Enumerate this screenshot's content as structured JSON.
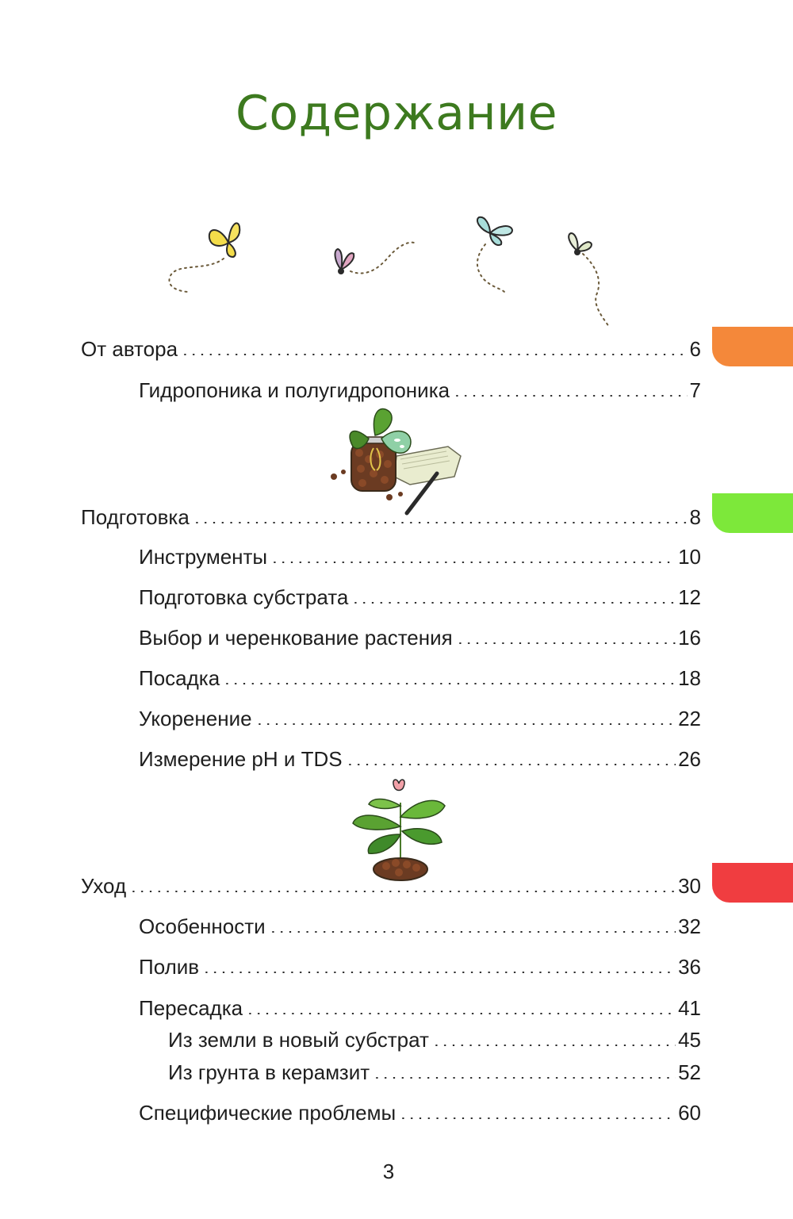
{
  "page_title": "Содержание",
  "toc": [
    {
      "label": "От автора",
      "page": "6"
    },
    {
      "label": "Гидропоника и полугидропоника",
      "page": "7"
    },
    {
      "label": "Подготовка",
      "page": "8"
    },
    {
      "label": "Инструменты",
      "page": "10"
    },
    {
      "label": "Подготовка субстрата",
      "page": "12"
    },
    {
      "label": "Выбор и черенкование растения",
      "page": "16"
    },
    {
      "label": "Посадка",
      "page": "18"
    },
    {
      "label": "Укоренение",
      "page": "22"
    },
    {
      "label": "Измерение pH и TDS",
      "page": "26"
    },
    {
      "label": "Уход",
      "page": "30"
    },
    {
      "label": "Особенности",
      "page": "32"
    },
    {
      "label": "Полив",
      "page": "36"
    },
    {
      "label": "Пересадка",
      "page": "41"
    },
    {
      "label": "Из земли в новый субстрат",
      "page": "45"
    },
    {
      "label": "Из грунта в керамзит",
      "page": "52"
    },
    {
      "label": "Специфические проблемы",
      "page": "60"
    }
  ],
  "section_tabs": [
    {
      "section": "От автора",
      "color": "#f4883a"
    },
    {
      "section": "Подготовка",
      "color": "#7de83a"
    },
    {
      "section": "Уход",
      "color": "#f03d40"
    }
  ],
  "illustrations": [
    "butterflies-illustration",
    "plant-jar-notebook-illustration",
    "potted-plant-illustration"
  ],
  "page_number": "3"
}
